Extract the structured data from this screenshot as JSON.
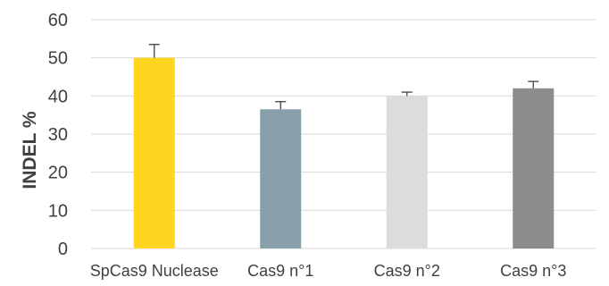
{
  "chart_data": {
    "type": "bar",
    "title": "",
    "xlabel": "",
    "ylabel": "INDEL %",
    "ylim": [
      0,
      60
    ],
    "yticks": [
      0,
      10,
      20,
      30,
      40,
      50,
      60
    ],
    "grid": true,
    "categories": [
      "SpCas9 Nuclease",
      "Cas9 n°1",
      "Cas9 n°2",
      "Cas9 n°3"
    ],
    "values": [
      50,
      36.5,
      40,
      42
    ],
    "errors": [
      3.5,
      2,
      1,
      1.8
    ],
    "colors": [
      "#ffd520",
      "#899faa",
      "#dcdcdc",
      "#8c8c8c"
    ],
    "error_bar_color": "#404040",
    "grid_color": "#d9d9d9",
    "text_color": "#404040"
  }
}
